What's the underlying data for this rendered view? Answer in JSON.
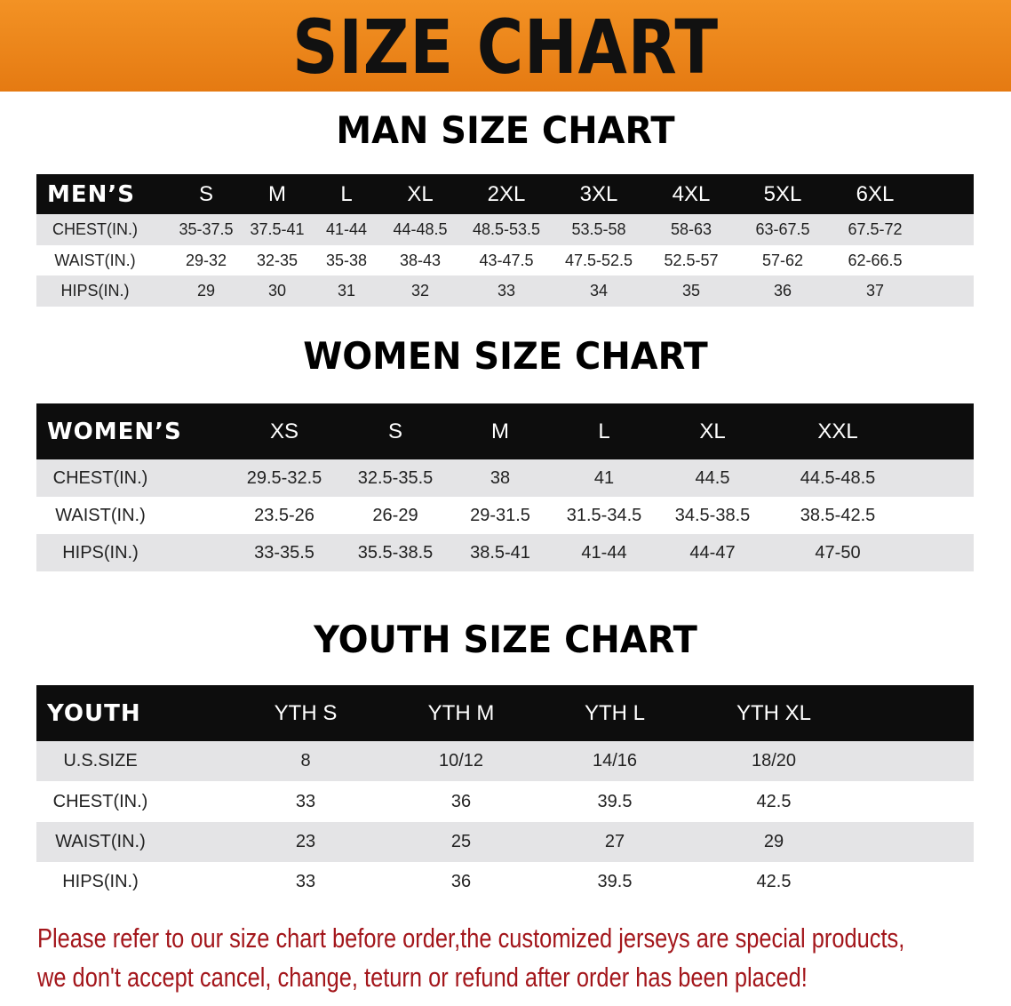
{
  "banner": {
    "title": "SIZE CHART"
  },
  "men": {
    "title": "MAN SIZE CHART",
    "headers": [
      "MEN’S",
      "S",
      "M",
      "L",
      "XL",
      "2XL",
      "3XL",
      "4XL",
      "5XL",
      "6XL"
    ],
    "rows": [
      [
        "CHEST(IN.)",
        "35-37.5",
        "37.5-41",
        "41-44",
        "44-48.5",
        "48.5-53.5",
        "53.5-58",
        "58-63",
        "63-67.5",
        "67.5-72"
      ],
      [
        "WAIST(IN.)",
        "29-32",
        "32-35",
        "35-38",
        "38-43",
        "43-47.5",
        "47.5-52.5",
        "52.5-57",
        "57-62",
        "62-66.5"
      ],
      [
        "HIPS(IN.)",
        "29",
        "30",
        "31",
        "32",
        "33",
        "34",
        "35",
        "36",
        "37"
      ]
    ]
  },
  "women": {
    "title": "WOMEN SIZE CHART",
    "headers": [
      "WOMEN’S",
      "XS",
      "S",
      "M",
      "L",
      "XL",
      "XXL"
    ],
    "rows": [
      [
        "CHEST(IN.)",
        "29.5-32.5",
        "32.5-35.5",
        "38",
        "41",
        "44.5",
        "44.5-48.5"
      ],
      [
        "WAIST(IN.)",
        "23.5-26",
        "26-29",
        "29-31.5",
        "31.5-34.5",
        "34.5-38.5",
        "38.5-42.5"
      ],
      [
        "HIPS(IN.)",
        "33-35.5",
        "35.5-38.5",
        "38.5-41",
        "41-44",
        "44-47",
        "47-50"
      ]
    ]
  },
  "youth": {
    "title": "YOUTH SIZE CHART",
    "headers": [
      "YOUTH",
      "YTH S",
      "YTH M",
      "YTH L",
      "YTH XL"
    ],
    "rows": [
      [
        "U.S.SIZE",
        "8",
        "10/12",
        "14/16",
        "18/20"
      ],
      [
        "CHEST(IN.)",
        "33",
        "36",
        "39.5",
        "42.5"
      ],
      [
        "WAIST(IN.)",
        "23",
        "25",
        "27",
        "29"
      ],
      [
        "HIPS(IN.)",
        "33",
        "36",
        "39.5",
        "42.5"
      ]
    ]
  },
  "notice": {
    "line1": "Please refer to our size chart before order,the customized jerseys are special products,",
    "line2": "we don't accept cancel, change, teturn or refund after order has been placed!"
  },
  "colors": {
    "banner": "#ef8a1e",
    "header_row": "#0d0d0d",
    "stripe": "#e4e4e6",
    "notice": "#a3161b"
  }
}
